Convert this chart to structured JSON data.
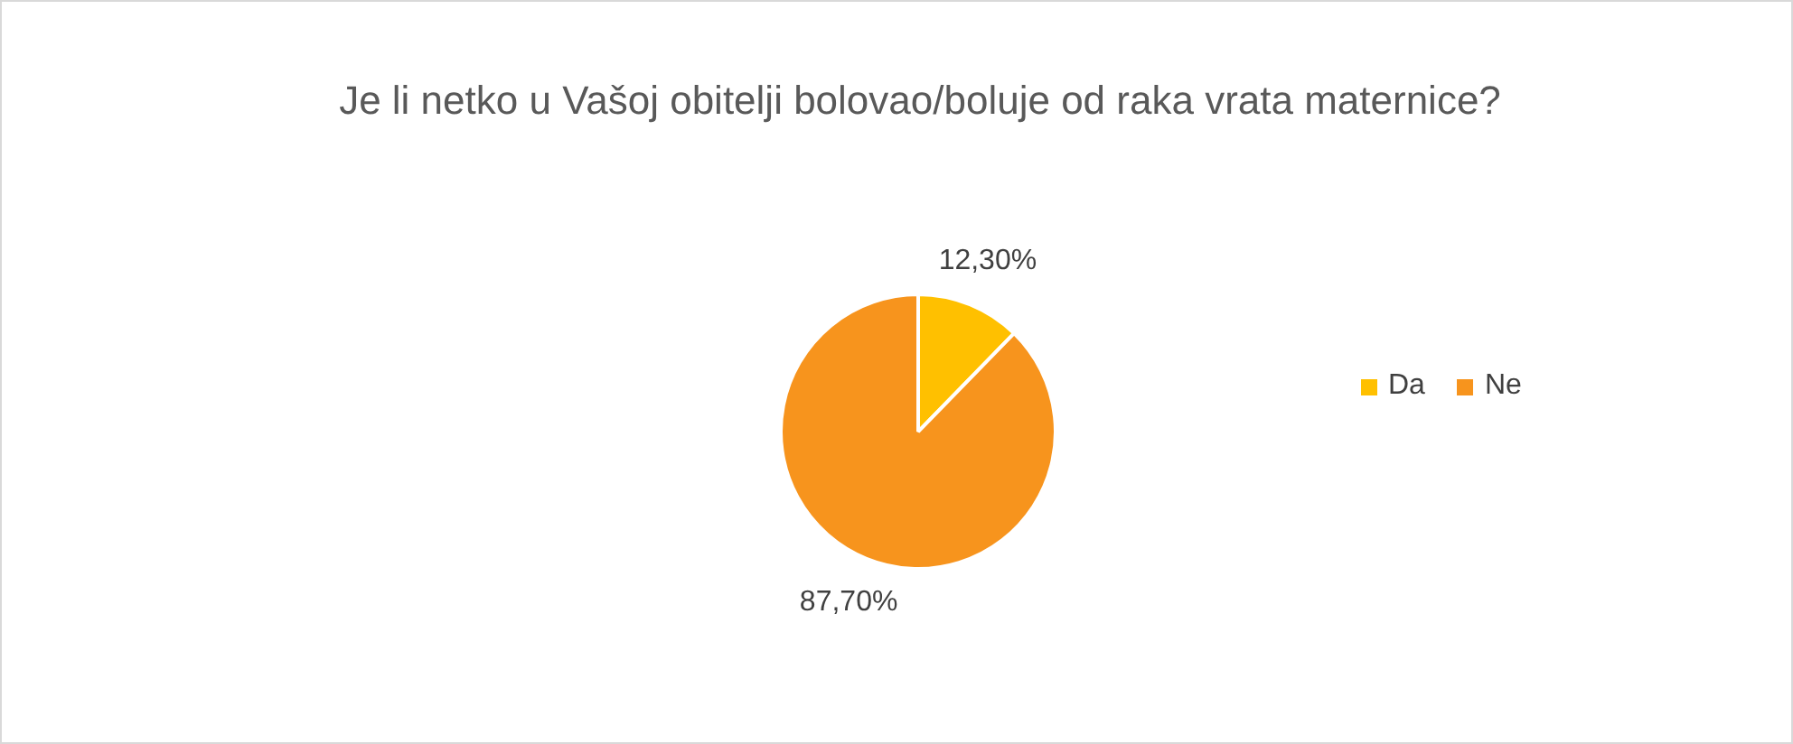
{
  "chart_data": {
    "type": "pie",
    "title": "Je li netko u Vašoj obitelji bolovao/boluje od raka vrata maternice?",
    "categories": [
      "Da",
      "Ne"
    ],
    "values": [
      12.3,
      87.7
    ],
    "colors": [
      "#ffc000",
      "#f7941d"
    ],
    "value_labels": [
      "12,30%",
      "87,70%"
    ],
    "legend": "right"
  }
}
